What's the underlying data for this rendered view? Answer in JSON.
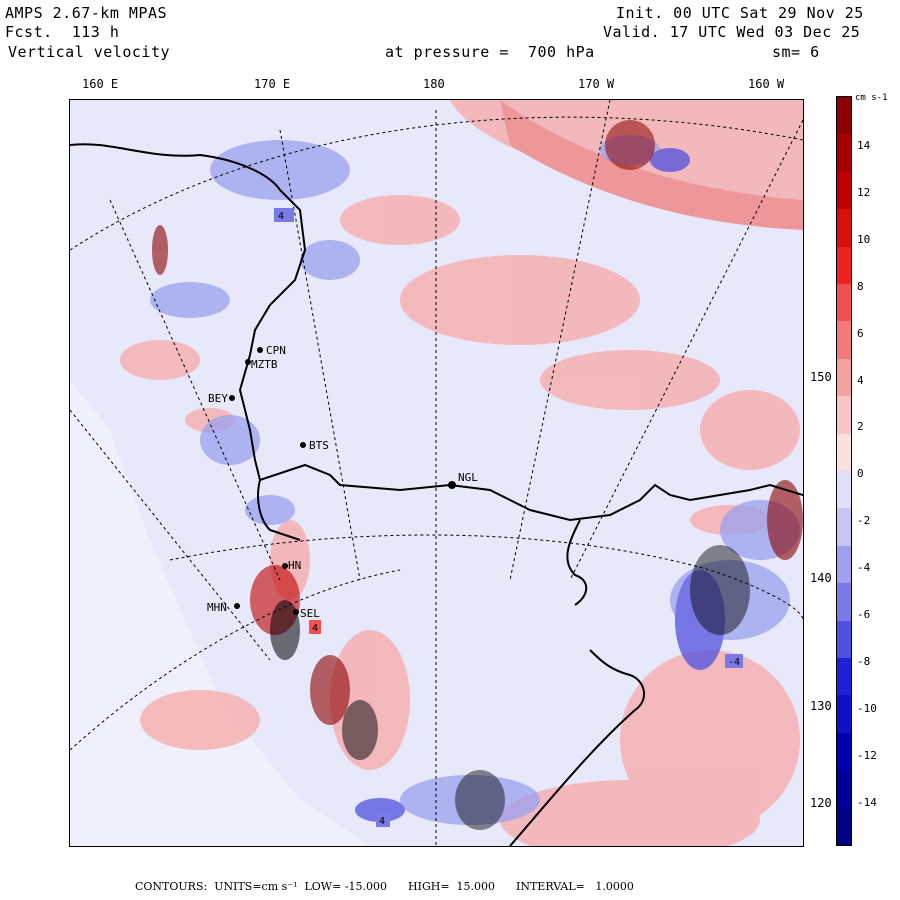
{
  "header": {
    "model": "AMPS 2.67-km MPAS",
    "forecast": "Fcst.  113 h",
    "field": "Vertical velocity",
    "level": "at pressure =  700 hPa",
    "init": "Init. 00 UTC Sat 29 Nov 25",
    "valid": "Valid. 17 UTC Wed 03 Dec 25",
    "smoothing": "sm= 6"
  },
  "longitude_labels": [
    "160 E",
    "170 E",
    "180",
    "170 W",
    "160 W"
  ],
  "latitude_labels": [
    "150 W",
    "140 W",
    "130 W",
    "120 W"
  ],
  "stations": [
    {
      "id": "CPN"
    },
    {
      "id": "MZTB"
    },
    {
      "id": "BEY"
    },
    {
      "id": "BTS"
    },
    {
      "id": "NGL"
    },
    {
      "id": "HN"
    },
    {
      "id": "MHN"
    },
    {
      "id": "SEL"
    }
  ],
  "contour_labels": [
    "4",
    "-4",
    "4",
    "4"
  ],
  "colorbar": {
    "units": "cm s-1",
    "ticks": [
      "14",
      "12",
      "10",
      "8",
      "6",
      "4",
      "2",
      "0",
      "-2",
      "-4",
      "-6",
      "-8",
      "-10",
      "-12",
      "-14"
    ],
    "colors": [
      "#8b0000",
      "#a80000",
      "#c00000",
      "#d81010",
      "#ee2020",
      "#f25050",
      "#f47a7a",
      "#f7a0a0",
      "#f9c6c6",
      "#fbe0e0",
      "#e0e0fb",
      "#c6c6f5",
      "#a0a0ee",
      "#7a7ae6",
      "#5050e0",
      "#2020d8",
      "#1010c8",
      "#0000b0",
      "#000098",
      "#000080"
    ]
  },
  "footer": "CONTOURS:  UNITS=cm s⁻¹  LOW= -15.000      HIGH=  15.000      INTERVAL=   1.0000",
  "map_colors": {
    "land_boundary": "#000000",
    "positive": "#f4a3a3",
    "negative": "#9aa0ee",
    "background": "#e8e8fb"
  }
}
